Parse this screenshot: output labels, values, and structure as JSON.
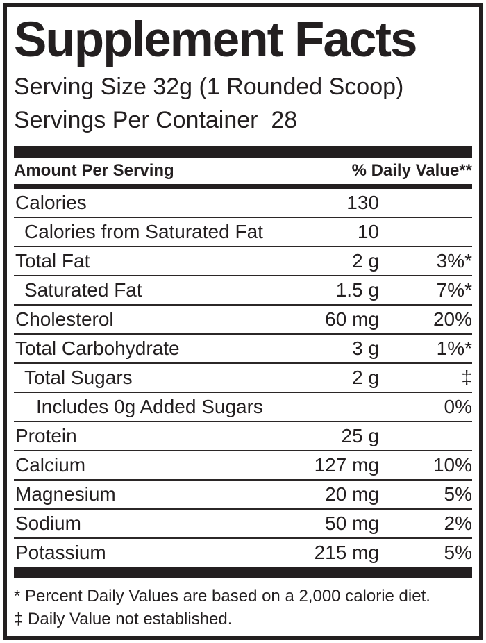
{
  "label": {
    "title": "Supplement Facts",
    "serving_size": "Serving Size 32g (1 Rounded Scoop)",
    "servings_per_container": "Servings Per Container  28",
    "columns": {
      "amount_header": "Amount Per Serving",
      "dv_header": "% Daily Value**"
    },
    "rows": [
      {
        "name": "Calories",
        "amount": "130",
        "dv": "",
        "indent": 0
      },
      {
        "name": "Calories from Saturated Fat",
        "amount": "10",
        "dv": "",
        "indent": 1
      },
      {
        "name": "Total Fat",
        "amount": "2 g",
        "dv": "3%*",
        "indent": 0
      },
      {
        "name": "Saturated Fat",
        "amount": "1.5 g",
        "dv": "7%*",
        "indent": 1
      },
      {
        "name": "Cholesterol",
        "amount": "60 mg",
        "dv": "20%",
        "indent": 0
      },
      {
        "name": "Total Carbohydrate",
        "amount": "3 g",
        "dv": "1%*",
        "indent": 0
      },
      {
        "name": "Total Sugars",
        "amount": "2 g",
        "dv": "‡",
        "indent": 1
      },
      {
        "name": "Includes 0g Added Sugars",
        "amount": "",
        "dv": "0%",
        "indent": 2
      },
      {
        "name": "Protein",
        "amount": "25 g",
        "dv": "",
        "indent": 0
      },
      {
        "name": "Calcium",
        "amount": "127 mg",
        "dv": "10%",
        "indent": 0
      },
      {
        "name": "Magnesium",
        "amount": "20 mg",
        "dv": "5%",
        "indent": 0
      },
      {
        "name": "Sodium",
        "amount": "50 mg",
        "dv": "2%",
        "indent": 0
      },
      {
        "name": "Potassium",
        "amount": "215 mg",
        "dv": "5%",
        "indent": 0
      }
    ],
    "footnotes": [
      "* Percent Daily Values are based on a 2,000 calorie diet.",
      "‡ Daily Value not established."
    ],
    "colors": {
      "ink": "#231f20",
      "background": "#ffffff"
    }
  }
}
